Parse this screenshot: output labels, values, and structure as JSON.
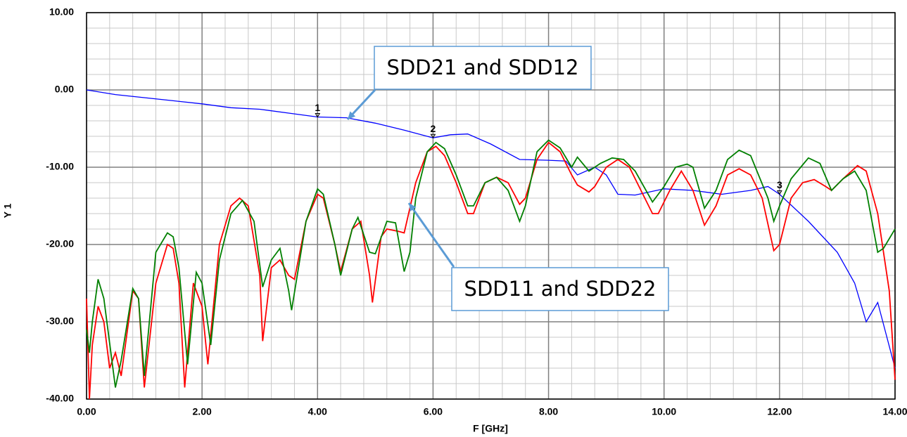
{
  "chart_data": {
    "type": "line",
    "xlabel": "F [GHz]",
    "ylabel": "Y 1",
    "xlim": [
      0,
      14
    ],
    "ylim": [
      -40,
      10
    ],
    "xticks": [
      {
        "value": 0,
        "label": "0.00"
      },
      {
        "value": 2,
        "label": "2.00"
      },
      {
        "value": 4,
        "label": "4.00"
      },
      {
        "value": 6,
        "label": "6.00"
      },
      {
        "value": 8,
        "label": "8.00"
      },
      {
        "value": 10,
        "label": "10.00"
      },
      {
        "value": 12,
        "label": "12.00"
      },
      {
        "value": 14,
        "label": "14.00"
      }
    ],
    "yticks": [
      {
        "value": -40,
        "label": "-40.00"
      },
      {
        "value": -30,
        "label": "-30.00"
      },
      {
        "value": -20,
        "label": "-20.00"
      },
      {
        "value": -10,
        "label": "-10.00"
      },
      {
        "value": 0,
        "label": "0.00"
      },
      {
        "value": 10,
        "label": "10.00"
      }
    ],
    "grid": true,
    "series": [
      {
        "color": "#0000ff",
        "x": [
          0,
          0.5,
          1,
          1.5,
          2,
          2.5,
          3,
          3.5,
          4,
          4.5,
          5,
          5.5,
          6,
          6.3,
          6.6,
          7,
          7.5,
          8,
          8.3,
          8.5,
          8.8,
          9,
          9.2,
          9.5,
          10,
          10.5,
          11,
          11.5,
          11.8,
          12,
          12.5,
          13,
          13.3,
          13.5,
          13.7,
          14
        ],
        "values": [
          0,
          -0.6,
          -1,
          -1.4,
          -1.8,
          -2.3,
          -2.5,
          -3,
          -3.5,
          -3.6,
          -4.3,
          -5.2,
          -6.2,
          -5.8,
          -5.7,
          -7,
          -9,
          -9.1,
          -9.2,
          -11,
          -10,
          -11,
          -13.5,
          -13.6,
          -12.8,
          -13,
          -13.5,
          -13,
          -12.5,
          -13.5,
          -17,
          -21,
          -25,
          -30,
          -27.5,
          -36
        ]
      },
      {
        "color": "#ff0000",
        "x": [
          0,
          0.05,
          0.1,
          0.2,
          0.3,
          0.4,
          0.5,
          0.6,
          0.8,
          0.9,
          1.0,
          1.2,
          1.4,
          1.5,
          1.6,
          1.7,
          1.85,
          2.0,
          2.1,
          2.3,
          2.5,
          2.65,
          2.8,
          3.0,
          3.05,
          3.2,
          3.35,
          3.5,
          3.6,
          3.8,
          4.0,
          4.1,
          4.3,
          4.4,
          4.6,
          4.75,
          4.9,
          4.95,
          5.1,
          5.2,
          5.4,
          5.5,
          5.7,
          5.9,
          6.05,
          6.2,
          6.4,
          6.6,
          6.7,
          6.9,
          7.1,
          7.3,
          7.5,
          7.6,
          7.8,
          8.0,
          8.2,
          8.4,
          8.5,
          8.7,
          8.8,
          9.0,
          9.2,
          9.4,
          9.6,
          9.8,
          9.9,
          10.1,
          10.3,
          10.5,
          10.7,
          10.9,
          11.1,
          11.3,
          11.5,
          11.7,
          11.9,
          12.0,
          12.2,
          12.4,
          12.6,
          12.8,
          12.9,
          13.1,
          13.35,
          13.5,
          13.7,
          13.9,
          14
        ],
        "values": [
          -27,
          -40,
          -33,
          -28,
          -30,
          -36,
          -34,
          -37,
          -26,
          -27,
          -38.5,
          -25,
          -20,
          -20.5,
          -25,
          -38.5,
          -25,
          -28,
          -35.5,
          -20,
          -15,
          -14,
          -15,
          -24,
          -32.5,
          -23,
          -22,
          -24,
          -24.5,
          -17,
          -13.5,
          -14,
          -20,
          -23.5,
          -18,
          -17,
          -24,
          -27.5,
          -19,
          -18,
          -18.3,
          -18.5,
          -12,
          -8,
          -7.3,
          -8.5,
          -12,
          -16,
          -16,
          -12,
          -11.3,
          -12,
          -14.8,
          -14,
          -9,
          -6.8,
          -8,
          -11,
          -12.3,
          -13.2,
          -12.5,
          -10,
          -9,
          -10,
          -13,
          -16,
          -16,
          -13,
          -10.5,
          -13,
          -17.5,
          -15,
          -11,
          -10.2,
          -11,
          -14,
          -20.8,
          -20,
          -14,
          -12,
          -11.6,
          -12.5,
          -13,
          -11.5,
          -9.8,
          -10.5,
          -16,
          -26,
          -37.5
        ]
      },
      {
        "color": "#008000",
        "x": [
          0,
          0.05,
          0.1,
          0.2,
          0.3,
          0.5,
          0.6,
          0.8,
          0.9,
          1.0,
          1.2,
          1.4,
          1.5,
          1.6,
          1.75,
          1.9,
          2.0,
          2.15,
          2.3,
          2.5,
          2.7,
          2.9,
          3.05,
          3.2,
          3.35,
          3.5,
          3.55,
          3.8,
          4.0,
          4.1,
          4.3,
          4.4,
          4.6,
          4.7,
          4.9,
          5.0,
          5.2,
          5.35,
          5.5,
          5.6,
          5.7,
          5.9,
          6.05,
          6.2,
          6.4,
          6.6,
          6.7,
          6.9,
          7.1,
          7.3,
          7.5,
          7.6,
          7.8,
          8.0,
          8.2,
          8.4,
          8.5,
          8.7,
          8.9,
          9.1,
          9.3,
          9.5,
          9.8,
          10.0,
          10.2,
          10.4,
          10.5,
          10.7,
          10.9,
          11.1,
          11.3,
          11.5,
          11.8,
          11.9,
          12.0,
          12.2,
          12.5,
          12.7,
          12.9,
          13.1,
          13.3,
          13.5,
          13.7,
          13.8,
          14
        ],
        "values": [
          -31,
          -34,
          -30,
          -24.5,
          -27,
          -38.5,
          -35,
          -25.7,
          -27,
          -37,
          -21,
          -18.5,
          -19,
          -23,
          -35.5,
          -23.6,
          -25,
          -33,
          -22,
          -16,
          -14.3,
          -17,
          -25.5,
          -22,
          -20.5,
          -26,
          -28.5,
          -17,
          -12.8,
          -13.5,
          -20,
          -24,
          -18,
          -16.5,
          -21,
          -21.2,
          -17,
          -17.2,
          -23.5,
          -21,
          -14,
          -8,
          -6.8,
          -7.6,
          -11,
          -15,
          -15,
          -12,
          -11.3,
          -13,
          -17,
          -15,
          -8,
          -6.5,
          -7.5,
          -10,
          -8.7,
          -10.5,
          -9.5,
          -8.8,
          -9,
          -10.5,
          -14.5,
          -12.5,
          -10,
          -9.6,
          -10,
          -15.3,
          -13,
          -9,
          -7.8,
          -8.5,
          -14,
          -17,
          -15,
          -11.5,
          -8.8,
          -9.5,
          -13,
          -11.5,
          -10.5,
          -13,
          -21,
          -20.5,
          -18
        ]
      }
    ],
    "markers": [
      {
        "label": "1",
        "x": 4,
        "y": -3.5
      },
      {
        "label": "2",
        "x": 6,
        "y": -6.2
      },
      {
        "label": "3",
        "x": 12,
        "y": -13.5
      }
    ],
    "annotations": [
      "SDD21 and SDD12",
      "SDD11 and SDD22"
    ]
  }
}
